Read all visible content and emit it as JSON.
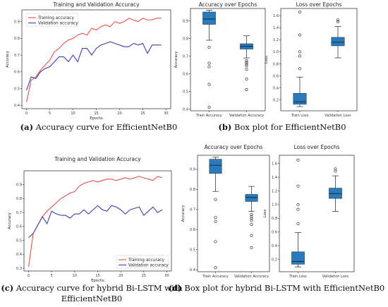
{
  "figure": {
    "captions": [
      {
        "letter": "(a)",
        "text": " Accuracy curve for EfficientNetB0"
      },
      {
        "letter": "(b)",
        "text": " Box plot for EfficientNetB0"
      },
      {
        "letter": "(c)",
        "text": " Accuracy curve for hybrid Bi-LSTM with"
      },
      {
        "letter": "",
        "text": "EfficientNetB0"
      },
      {
        "letter": "(d)",
        "text": " Box plot for hybrid Bi-LSTM with EfficientNetB0"
      }
    ]
  },
  "colors": {
    "train": "#e8504a",
    "val": "#3c3fb0",
    "box": "#2b7bba",
    "axis": "#222222"
  },
  "chart_data": [
    {
      "type": "line",
      "title": "Training and Validation Accuracy",
      "xlabel": "Epochs",
      "ylabel": "Accuracy",
      "xlim": [
        -1,
        31
      ],
      "ylim": [
        0.38,
        0.97
      ],
      "xticks": [
        0,
        5,
        10,
        15,
        20,
        25,
        30
      ],
      "yticks": [
        0.4,
        0.5,
        0.6,
        0.7,
        0.8,
        0.9
      ],
      "legend": "upper-left",
      "x": [
        0,
        1,
        2,
        3,
        4,
        5,
        6,
        7,
        8,
        9,
        10,
        11,
        12,
        13,
        14,
        15,
        16,
        17,
        18,
        19,
        20,
        21,
        22,
        23,
        24,
        25,
        26,
        27,
        28,
        29
      ],
      "series": [
        {
          "name": "Training accuracy",
          "color": "train",
          "values": [
            0.42,
            0.55,
            0.57,
            0.61,
            0.64,
            0.67,
            0.72,
            0.74,
            0.77,
            0.79,
            0.8,
            0.82,
            0.83,
            0.82,
            0.86,
            0.85,
            0.87,
            0.88,
            0.87,
            0.9,
            0.89,
            0.9,
            0.92,
            0.91,
            0.9,
            0.92,
            0.91,
            0.91,
            0.92,
            0.92
          ]
        },
        {
          "name": "Validation accuracy",
          "color": "val",
          "values": [
            0.49,
            0.57,
            0.56,
            0.6,
            0.62,
            0.63,
            0.66,
            0.69,
            0.69,
            0.66,
            0.7,
            0.66,
            0.74,
            0.74,
            0.7,
            0.74,
            0.76,
            0.77,
            0.78,
            0.77,
            0.76,
            0.75,
            0.75,
            0.77,
            0.76,
            0.77,
            0.71,
            0.76,
            0.76,
            0.76
          ]
        }
      ]
    },
    {
      "type": "box",
      "title": "Accuracy over Epochs",
      "ylabel": "Accuracy",
      "ylim": [
        0.39,
        0.97
      ],
      "yticks": [
        0.4,
        0.5,
        0.6,
        0.7,
        0.8,
        0.9
      ],
      "boxes": [
        {
          "label": "Train Accuracy",
          "whislo": 0.79,
          "q1": 0.88,
          "med": 0.91,
          "q3": 0.95,
          "whishi": 0.96,
          "fliers": [
            0.41,
            0.54,
            0.64,
            0.66,
            0.75
          ]
        },
        {
          "label": "Validation Accuracy",
          "whislo": 0.69,
          "q1": 0.74,
          "med": 0.755,
          "q3": 0.77,
          "whishi": 0.815,
          "fliers": [
            0.51,
            0.57,
            0.625,
            0.645,
            0.655,
            0.665,
            0.675
          ]
        }
      ]
    },
    {
      "type": "box",
      "title": "Loss over Epochs",
      "ylabel": "Loss",
      "ylim": [
        0.02,
        1.72
      ],
      "yticks": [
        0.2,
        0.4,
        0.6,
        0.8,
        1.0,
        1.2,
        1.4,
        1.6
      ],
      "boxes": [
        {
          "label": "Train Loss",
          "whislo": 0.09,
          "q1": 0.13,
          "med": 0.17,
          "q3": 0.31,
          "whishi": 0.58,
          "fliers": [
            0.72,
            0.93,
            1.0,
            1.28,
            1.66
          ]
        },
        {
          "label": "Validation Loss",
          "whislo": 0.9,
          "q1": 1.1,
          "med": 1.16,
          "q3": 1.24,
          "whishi": 1.42,
          "fliers": [
            1.5,
            1.53
          ]
        }
      ]
    },
    {
      "type": "line",
      "title": "Training and Validation Accuracy",
      "xlabel": "Epochs",
      "ylabel": "Accuracy",
      "xlim": [
        -1,
        31
      ],
      "ylim": [
        0.28,
        1.0
      ],
      "xticks": [
        0,
        5,
        10,
        15,
        20,
        25,
        30
      ],
      "yticks": [
        0.3,
        0.4,
        0.5,
        0.6,
        0.7,
        0.8,
        0.9
      ],
      "legend": "lower-right",
      "x": [
        0,
        1,
        2,
        3,
        4,
        5,
        6,
        7,
        8,
        9,
        10,
        11,
        12,
        13,
        14,
        15,
        16,
        17,
        18,
        19,
        20,
        21,
        22,
        23,
        24,
        25,
        26,
        27,
        28,
        29
      ],
      "series": [
        {
          "name": "Training accuracy",
          "color": "train",
          "values": [
            0.31,
            0.55,
            0.61,
            0.67,
            0.71,
            0.74,
            0.77,
            0.8,
            0.82,
            0.84,
            0.85,
            0.89,
            0.91,
            0.92,
            0.93,
            0.92,
            0.93,
            0.94,
            0.94,
            0.93,
            0.94,
            0.95,
            0.94,
            0.95,
            0.96,
            0.95,
            0.94,
            0.93,
            0.96,
            0.95
          ]
        },
        {
          "name": "Validation accuracy",
          "color": "val",
          "values": [
            0.52,
            0.55,
            0.61,
            0.67,
            0.62,
            0.71,
            0.69,
            0.68,
            0.68,
            0.66,
            0.69,
            0.69,
            0.72,
            0.69,
            0.72,
            0.75,
            0.72,
            0.71,
            0.75,
            0.74,
            0.72,
            0.69,
            0.72,
            0.73,
            0.74,
            0.68,
            0.71,
            0.74,
            0.7,
            0.72
          ]
        }
      ]
    },
    {
      "type": "box",
      "title": "Accuracy over Epochs",
      "ylabel": "Accuracy",
      "ylim": [
        0.39,
        0.97
      ],
      "yticks": [
        0.4,
        0.5,
        0.6,
        0.7,
        0.8,
        0.9
      ],
      "boxes": [
        {
          "label": "Train Accuracy",
          "whislo": 0.79,
          "q1": 0.88,
          "med": 0.92,
          "q3": 0.95,
          "whishi": 0.96,
          "fliers": [
            0.41,
            0.54,
            0.64,
            0.66,
            0.75
          ]
        },
        {
          "label": "Validation Accuracy",
          "whislo": 0.69,
          "q1": 0.74,
          "med": 0.76,
          "q3": 0.775,
          "whishi": 0.815,
          "fliers": [
            0.51,
            0.57,
            0.625,
            0.645,
            0.655,
            0.665,
            0.675
          ]
        }
      ]
    },
    {
      "type": "box",
      "title": "Loss over Epochs",
      "ylabel": "Loss",
      "ylim": [
        0.02,
        1.72
      ],
      "yticks": [
        0.2,
        0.4,
        0.6,
        0.8,
        1.0,
        1.2,
        1.4,
        1.6
      ],
      "boxes": [
        {
          "label": "Train Loss",
          "whislo": 0.09,
          "q1": 0.13,
          "med": 0.17,
          "q3": 0.31,
          "whishi": 0.59,
          "fliers": [
            0.72,
            0.93,
            1.0,
            1.27,
            1.65
          ]
        },
        {
          "label": "Validation Loss",
          "whislo": 0.9,
          "q1": 1.09,
          "med": 1.16,
          "q3": 1.24,
          "whishi": 1.42,
          "fliers": [
            1.49,
            1.52
          ]
        }
      ]
    }
  ]
}
